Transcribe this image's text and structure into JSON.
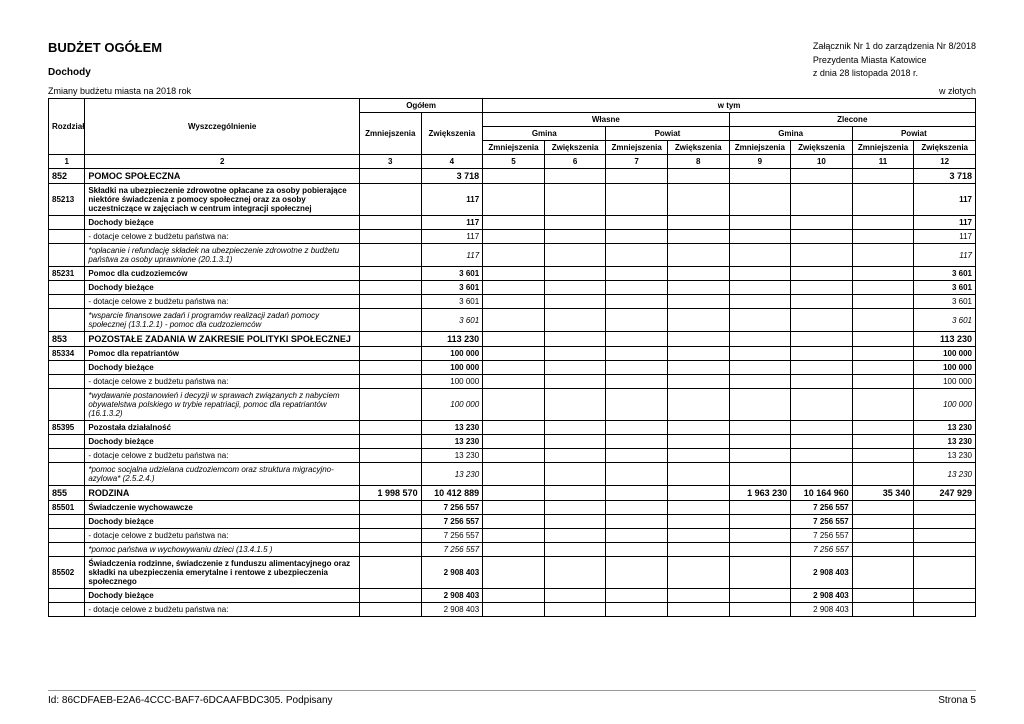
{
  "header": {
    "title": "BUDŻET OGÓŁEM",
    "subtitle": "Dochody",
    "subline": "Zmiany budżetu miasta na 2018 rok",
    "attachment_line1": "Załącznik Nr 1 do zarządzenia Nr 8/2018",
    "attachment_line2": "Prezydenta Miasta Katowice",
    "attachment_line3": "z dnia 28 listopada 2018 r.",
    "unit": "w złotych"
  },
  "table": {
    "head": {
      "rozdzial": "Rozdział",
      "wysz": "Wyszczególnienie",
      "ogolem": "Ogółem",
      "w_tym": "w tym",
      "wlasne": "Własne",
      "zlecone": "Zlecone",
      "gmina": "Gmina",
      "powiat": "Powiat",
      "zmn": "Zmniejszenia",
      "zwi": "Zwiększenia"
    },
    "colnums": [
      "1",
      "2",
      "3",
      "4",
      "5",
      "6",
      "7",
      "8",
      "9",
      "10",
      "11",
      "12"
    ],
    "rows": [
      {
        "style": "section",
        "c": [
          "852",
          "POMOC SPOŁECZNA",
          "",
          "3 718",
          "",
          "",
          "",
          "",
          "",
          "",
          "",
          "3 718"
        ]
      },
      {
        "style": "bold",
        "c": [
          "85213",
          "Składki na ubezpieczenie zdrowotne opłacane za osoby pobierające niektóre świadczenia z pomocy społecznej oraz za osoby uczestniczące w zajęciach w centrum integracji społecznej",
          "",
          "117",
          "",
          "",
          "",
          "",
          "",
          "",
          "",
          "117"
        ]
      },
      {
        "style": "bold",
        "c": [
          "",
          "Dochody bieżące",
          "",
          "117",
          "",
          "",
          "",
          "",
          "",
          "",
          "",
          "117"
        ]
      },
      {
        "style": "",
        "c": [
          "",
          "- dotacje celowe z budżetu państwa na:",
          "",
          "117",
          "",
          "",
          "",
          "",
          "",
          "",
          "",
          "117"
        ]
      },
      {
        "style": "italic",
        "c": [
          "",
          "*opłacanie i refundację składek na ubezpieczenie zdrowotne z budżetu państwa za osoby uprawnione (20.1.3.1)",
          "",
          "117",
          "",
          "",
          "",
          "",
          "",
          "",
          "",
          "117"
        ]
      },
      {
        "style": "bold",
        "c": [
          "85231",
          "Pomoc dla cudzoziemców",
          "",
          "3 601",
          "",
          "",
          "",
          "",
          "",
          "",
          "",
          "3 601"
        ]
      },
      {
        "style": "bold",
        "c": [
          "",
          "Dochody bieżące",
          "",
          "3 601",
          "",
          "",
          "",
          "",
          "",
          "",
          "",
          "3 601"
        ]
      },
      {
        "style": "",
        "c": [
          "",
          "- dotacje celowe z budżetu państwa na:",
          "",
          "3 601",
          "",
          "",
          "",
          "",
          "",
          "",
          "",
          "3 601"
        ]
      },
      {
        "style": "italic",
        "c": [
          "",
          "*wsparcie finansowe zadań i programów realizacji zadań pomocy społecznej (13.1.2.1) - pomoc dla cudzoziemców",
          "",
          "3 601",
          "",
          "",
          "",
          "",
          "",
          "",
          "",
          "3 601"
        ]
      },
      {
        "style": "section",
        "c": [
          "853",
          "POZOSTAŁE ZADANIA W ZAKRESIE POLITYKI SPOŁECZNEJ",
          "",
          "113 230",
          "",
          "",
          "",
          "",
          "",
          "",
          "",
          "113 230"
        ]
      },
      {
        "style": "bold",
        "c": [
          "85334",
          "Pomoc dla repatriantów",
          "",
          "100 000",
          "",
          "",
          "",
          "",
          "",
          "",
          "",
          "100 000"
        ]
      },
      {
        "style": "bold",
        "c": [
          "",
          "Dochody bieżące",
          "",
          "100 000",
          "",
          "",
          "",
          "",
          "",
          "",
          "",
          "100 000"
        ]
      },
      {
        "style": "",
        "c": [
          "",
          "- dotacje celowe z budżetu państwa na:",
          "",
          "100 000",
          "",
          "",
          "",
          "",
          "",
          "",
          "",
          "100 000"
        ]
      },
      {
        "style": "italic",
        "c": [
          "",
          "*wydawanie postanowień i decyzji w sprawach związanych z nabyciem obywatelstwa polskiego w trybie repatriacji, pomoc dla repatriantów (16.1.3.2)",
          "",
          "100 000",
          "",
          "",
          "",
          "",
          "",
          "",
          "",
          "100 000"
        ]
      },
      {
        "style": "bold",
        "c": [
          "85395",
          "Pozostała działalność",
          "",
          "13 230",
          "",
          "",
          "",
          "",
          "",
          "",
          "",
          "13 230"
        ]
      },
      {
        "style": "bold",
        "c": [
          "",
          "Dochody bieżące",
          "",
          "13 230",
          "",
          "",
          "",
          "",
          "",
          "",
          "",
          "13 230"
        ]
      },
      {
        "style": "",
        "c": [
          "",
          "- dotacje celowe z budżetu państwa na:",
          "",
          "13 230",
          "",
          "",
          "",
          "",
          "",
          "",
          "",
          "13 230"
        ]
      },
      {
        "style": "italic",
        "c": [
          "",
          "*pomoc socjalna udzielana cudzoziemcom oraz struktura migracyjno-azylowa* (2.5.2.4.)",
          "",
          "13 230",
          "",
          "",
          "",
          "",
          "",
          "",
          "",
          "13 230"
        ]
      },
      {
        "style": "section",
        "c": [
          "855",
          "RODZINA",
          "1 998 570",
          "10 412 889",
          "",
          "",
          "",
          "",
          "1 963 230",
          "10 164 960",
          "35 340",
          "247 929"
        ]
      },
      {
        "style": "bold",
        "c": [
          "85501",
          "Świadczenie wychowawcze",
          "",
          "7 256 557",
          "",
          "",
          "",
          "",
          "",
          "7 256 557",
          "",
          ""
        ]
      },
      {
        "style": "bold",
        "c": [
          "",
          "Dochody bieżące",
          "",
          "7 256 557",
          "",
          "",
          "",
          "",
          "",
          "7 256 557",
          "",
          ""
        ]
      },
      {
        "style": "",
        "c": [
          "",
          "- dotacje celowe z budżetu państwa na:",
          "",
          "7 256 557",
          "",
          "",
          "",
          "",
          "",
          "7 256 557",
          "",
          ""
        ]
      },
      {
        "style": "italic",
        "c": [
          "",
          "*pomoc państwa w wychowywaniu dzieci (13.4.1.5 )",
          "",
          "7 256 557",
          "",
          "",
          "",
          "",
          "",
          "7 256 557",
          "",
          ""
        ]
      },
      {
        "style": "bold",
        "c": [
          "85502",
          "Świadczenia rodzinne, świadczenie z funduszu alimentacyjnego oraz składki na ubezpieczenia emerytalne i rentowe z ubezpieczenia społecznego",
          "",
          "2 908 403",
          "",
          "",
          "",
          "",
          "",
          "2 908 403",
          "",
          ""
        ]
      },
      {
        "style": "bold",
        "c": [
          "",
          "Dochody bieżące",
          "",
          "2 908 403",
          "",
          "",
          "",
          "",
          "",
          "2 908 403",
          "",
          ""
        ]
      },
      {
        "style": "",
        "c": [
          "",
          "- dotacje celowe z budżetu państwa na:",
          "",
          "2 908 403",
          "",
          "",
          "",
          "",
          "",
          "2 908 403",
          "",
          ""
        ]
      }
    ]
  },
  "footer": {
    "id": "Id: 86CDFAEB-E2A6-4CCC-BAF7-6DCAAFBDC305. Podpisany",
    "page": "Strona 5"
  }
}
